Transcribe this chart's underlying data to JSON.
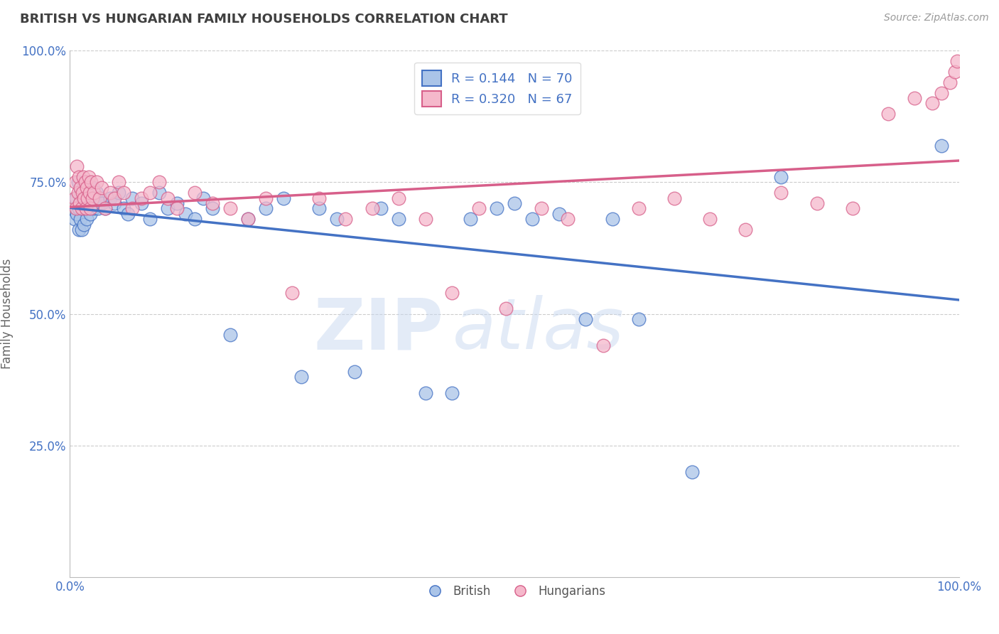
{
  "title": "BRITISH VS HUNGARIAN FAMILY HOUSEHOLDS CORRELATION CHART",
  "source_text": "Source: ZipAtlas.com",
  "ylabel": "Family Households",
  "xlabel": "",
  "xlim": [
    0,
    1
  ],
  "ylim": [
    0,
    1
  ],
  "x_tick_labels": [
    "0.0%",
    "100.0%"
  ],
  "y_tick_labels": [
    "25.0%",
    "50.0%",
    "75.0%",
    "100.0%"
  ],
  "y_tick_positions": [
    0.25,
    0.5,
    0.75,
    1.0
  ],
  "british_R": "0.144",
  "british_N": "70",
  "hungarian_R": "0.320",
  "hungarian_N": "67",
  "british_color": "#aac4e8",
  "hungarian_color": "#f5b8cb",
  "british_line_color": "#4472c4",
  "hungarian_line_color": "#d75f8a",
  "legend_british_label": "British",
  "legend_hungarian_label": "Hungarians",
  "watermark_zip": "ZIP",
  "watermark_atlas": "atlas",
  "background_color": "#ffffff",
  "grid_color": "#cccccc",
  "title_color": "#404040",
  "british_scatter_x": [
    0.005,
    0.007,
    0.008,
    0.009,
    0.01,
    0.01,
    0.011,
    0.012,
    0.012,
    0.013,
    0.014,
    0.015,
    0.015,
    0.016,
    0.017,
    0.018,
    0.018,
    0.019,
    0.02,
    0.021,
    0.022,
    0.023,
    0.024,
    0.025,
    0.026,
    0.027,
    0.028,
    0.03,
    0.032,
    0.034,
    0.036,
    0.04,
    0.045,
    0.05,
    0.055,
    0.06,
    0.065,
    0.07,
    0.08,
    0.09,
    0.1,
    0.11,
    0.12,
    0.13,
    0.14,
    0.15,
    0.16,
    0.18,
    0.2,
    0.22,
    0.24,
    0.26,
    0.28,
    0.3,
    0.32,
    0.35,
    0.37,
    0.4,
    0.43,
    0.45,
    0.48,
    0.5,
    0.52,
    0.55,
    0.58,
    0.61,
    0.64,
    0.7,
    0.8,
    0.98
  ],
  "british_scatter_y": [
    0.68,
    0.72,
    0.69,
    0.75,
    0.7,
    0.66,
    0.71,
    0.68,
    0.73,
    0.66,
    0.72,
    0.7,
    0.74,
    0.67,
    0.72,
    0.7,
    0.75,
    0.68,
    0.72,
    0.7,
    0.73,
    0.69,
    0.72,
    0.71,
    0.74,
    0.7,
    0.72,
    0.73,
    0.7,
    0.72,
    0.71,
    0.7,
    0.72,
    0.71,
    0.73,
    0.7,
    0.69,
    0.72,
    0.71,
    0.68,
    0.73,
    0.7,
    0.71,
    0.69,
    0.68,
    0.72,
    0.7,
    0.46,
    0.68,
    0.7,
    0.72,
    0.38,
    0.7,
    0.68,
    0.39,
    0.7,
    0.68,
    0.35,
    0.35,
    0.68,
    0.7,
    0.71,
    0.68,
    0.69,
    0.49,
    0.68,
    0.49,
    0.2,
    0.76,
    0.82
  ],
  "hungarian_scatter_x": [
    0.005,
    0.006,
    0.007,
    0.008,
    0.009,
    0.01,
    0.011,
    0.012,
    0.013,
    0.014,
    0.015,
    0.016,
    0.017,
    0.018,
    0.019,
    0.02,
    0.021,
    0.022,
    0.023,
    0.024,
    0.025,
    0.027,
    0.03,
    0.033,
    0.036,
    0.04,
    0.045,
    0.05,
    0.055,
    0.06,
    0.07,
    0.08,
    0.09,
    0.1,
    0.11,
    0.12,
    0.14,
    0.16,
    0.18,
    0.2,
    0.22,
    0.25,
    0.28,
    0.31,
    0.34,
    0.37,
    0.4,
    0.43,
    0.46,
    0.49,
    0.53,
    0.56,
    0.6,
    0.64,
    0.68,
    0.72,
    0.76,
    0.8,
    0.84,
    0.88,
    0.92,
    0.95,
    0.97,
    0.98,
    0.99,
    0.995,
    0.998
  ],
  "hungarian_scatter_y": [
    0.72,
    0.75,
    0.7,
    0.78,
    0.73,
    0.76,
    0.71,
    0.74,
    0.7,
    0.73,
    0.76,
    0.72,
    0.75,
    0.7,
    0.74,
    0.72,
    0.76,
    0.73,
    0.7,
    0.75,
    0.72,
    0.73,
    0.75,
    0.72,
    0.74,
    0.7,
    0.73,
    0.72,
    0.75,
    0.73,
    0.7,
    0.72,
    0.73,
    0.75,
    0.72,
    0.7,
    0.73,
    0.71,
    0.7,
    0.68,
    0.72,
    0.54,
    0.72,
    0.68,
    0.7,
    0.72,
    0.68,
    0.54,
    0.7,
    0.51,
    0.7,
    0.68,
    0.44,
    0.7,
    0.72,
    0.68,
    0.66,
    0.73,
    0.71,
    0.7,
    0.88,
    0.91,
    0.9,
    0.92,
    0.94,
    0.96,
    0.98
  ]
}
